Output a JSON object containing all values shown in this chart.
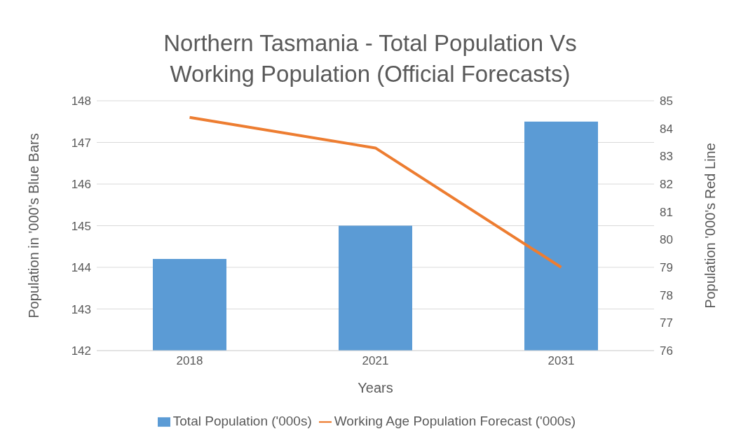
{
  "chart_data": {
    "type": "bar",
    "title": "Northern Tasmania - Total Population Vs Working Population (Official Forecasts)",
    "categories": [
      "2018",
      "2021",
      "2031"
    ],
    "series": [
      {
        "name": "Total Population ('000s)",
        "color": "#5b9bd5",
        "values": [
          144.2,
          145.0,
          147.5
        ]
      },
      {
        "name": "Working Age Population Forecast ('000s)",
        "type": "line",
        "axis": "y2",
        "color": "#ed7d31",
        "marker": "none",
        "values": [
          84.4,
          83.3,
          79.0
        ]
      }
    ],
    "xlabel": "Years",
    "ylabel": "Population in '000's Blue Bars",
    "y2label": "Population '000's Red Line",
    "ylim": [
      142,
      148
    ],
    "yticks": [
      142,
      143,
      144,
      145,
      146,
      147,
      148
    ],
    "y2lim": [
      76,
      85
    ],
    "y2ticks": [
      76,
      77,
      78,
      79,
      80,
      81,
      82,
      83,
      84,
      85
    ],
    "grid": "y",
    "legend": "bottom"
  }
}
